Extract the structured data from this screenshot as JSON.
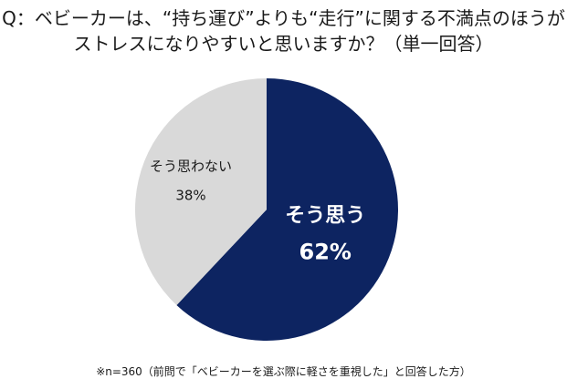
{
  "question": {
    "line1": "Q：ベビーカーは、“持ち運び”よりも“走行”に関する不満点のほうが",
    "line2": "ストレスになりやすいと思いますか？（単一回答）"
  },
  "footnote": "※n=360（前問で「ベビーカーを選ぶ際に軽さを重視した」と回答した方）",
  "chart_data": {
    "type": "pie",
    "title": "Q：ベビーカーは、“持ち運び”よりも“走行”に関する不満点のほうがストレスになりやすいと思いますか？（単一回答）",
    "slices": [
      {
        "label": "そう思う",
        "value": 62,
        "value_label": "62%",
        "color": "#0d2461",
        "text_color": "#ffffff"
      },
      {
        "label": "そう思わない",
        "value": 38,
        "value_label": "38%",
        "color": "#d9d9d9",
        "text_color": "#1a1a1a"
      }
    ],
    "start": "12 o'clock",
    "direction": "clockwise",
    "legend": "none"
  }
}
